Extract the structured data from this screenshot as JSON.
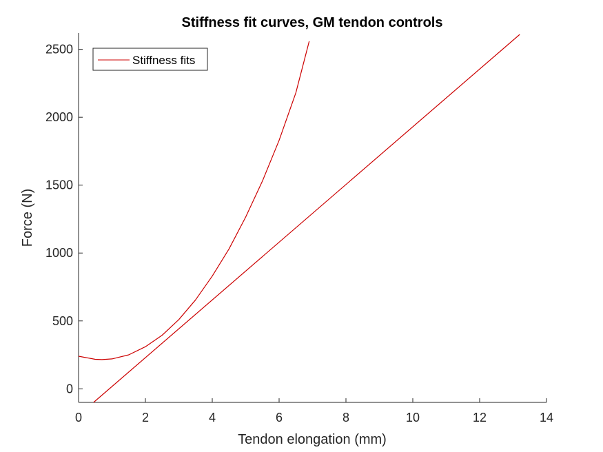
{
  "chart_data": {
    "type": "line",
    "title": "Stiffness fit curves, GM tendon controls",
    "xlabel": "Tendon elongation (mm)",
    "ylabel": "Force (N)",
    "xlim": [
      0,
      14
    ],
    "ylim": [
      -100,
      2620
    ],
    "xticks": [
      0,
      2,
      4,
      6,
      8,
      10,
      12,
      14
    ],
    "yticks": [
      0,
      500,
      1000,
      1500,
      2000,
      2500
    ],
    "grid": false,
    "legend": {
      "position": "top-left",
      "entries": [
        "Stiffness fits"
      ]
    },
    "series_color": "#cc0000",
    "series": [
      {
        "x": [
          0,
          0.5,
          0.7,
          1,
          1.5,
          2,
          2.5,
          3,
          3.5,
          4,
          4.5,
          5,
          5.5,
          6,
          6.5,
          6.9
        ],
        "y": [
          240,
          217,
          215,
          220,
          250,
          310,
          395,
          510,
          655,
          830,
          1030,
          1265,
          1530,
          1830,
          2180,
          2560
        ]
      },
      {
        "x": [
          0.45,
          13.2
        ],
        "y": [
          -100,
          2610
        ]
      }
    ]
  }
}
